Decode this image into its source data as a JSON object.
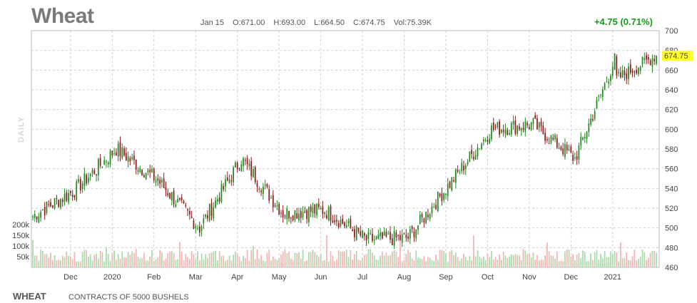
{
  "header": {
    "title": "Wheat",
    "date": "Jan 15",
    "open": "O:671.00",
    "high": "H:693.00",
    "low": "L:664.50",
    "close": "C:674.75",
    "volume": "Vol:75.39K",
    "change": "+4.75 (0.71%)",
    "period": "DAILY"
  },
  "footer": {
    "symbol": "WHEAT",
    "description": "CONTRACTS OF 5000 BUSHELS"
  },
  "colors": {
    "up": "#1f8a1f",
    "down": "#8b1a1a",
    "vol_up": "#a8dba8",
    "vol_down": "#f4b4b4",
    "grid": "#cfcfcf",
    "last_price_bg": "#ffff33"
  },
  "chart_data": {
    "type": "candlestick",
    "last_price": "674.75",
    "price_ticks": [
      "700",
      "680",
      "660",
      "640",
      "620",
      "600",
      "580",
      "560",
      "540",
      "520",
      "500",
      "480",
      "460"
    ],
    "volume_ticks": [
      "200k",
      "150k",
      "100k",
      "50k"
    ],
    "x_ticks": [
      "Dec",
      "2020",
      "Feb",
      "Mar",
      "Apr",
      "May",
      "Jun",
      "Jul",
      "Aug",
      "Sep",
      "Oct",
      "Nov",
      "Dec",
      "2021"
    ],
    "ylim": [
      460,
      700
    ],
    "monthly_path": [
      {
        "month": "2019-11",
        "price": 512
      },
      {
        "month": "2019-12",
        "price": 538
      },
      {
        "month": "2020-01",
        "price": 580
      },
      {
        "month": "2020-02",
        "price": 548
      },
      {
        "month": "2020-03",
        "price": 500
      },
      {
        "month": "2020-04",
        "price": 570
      },
      {
        "month": "2020-05",
        "price": 515
      },
      {
        "month": "2020-06",
        "price": 518
      },
      {
        "month": "2020-07",
        "price": 488
      },
      {
        "month": "2020-08",
        "price": 490
      },
      {
        "month": "2020-09",
        "price": 545
      },
      {
        "month": "2020-10",
        "price": 600
      },
      {
        "month": "2020-11",
        "price": 605
      },
      {
        "month": "2020-12",
        "price": 570
      },
      {
        "month": "2021-01",
        "price": 675
      }
    ]
  }
}
